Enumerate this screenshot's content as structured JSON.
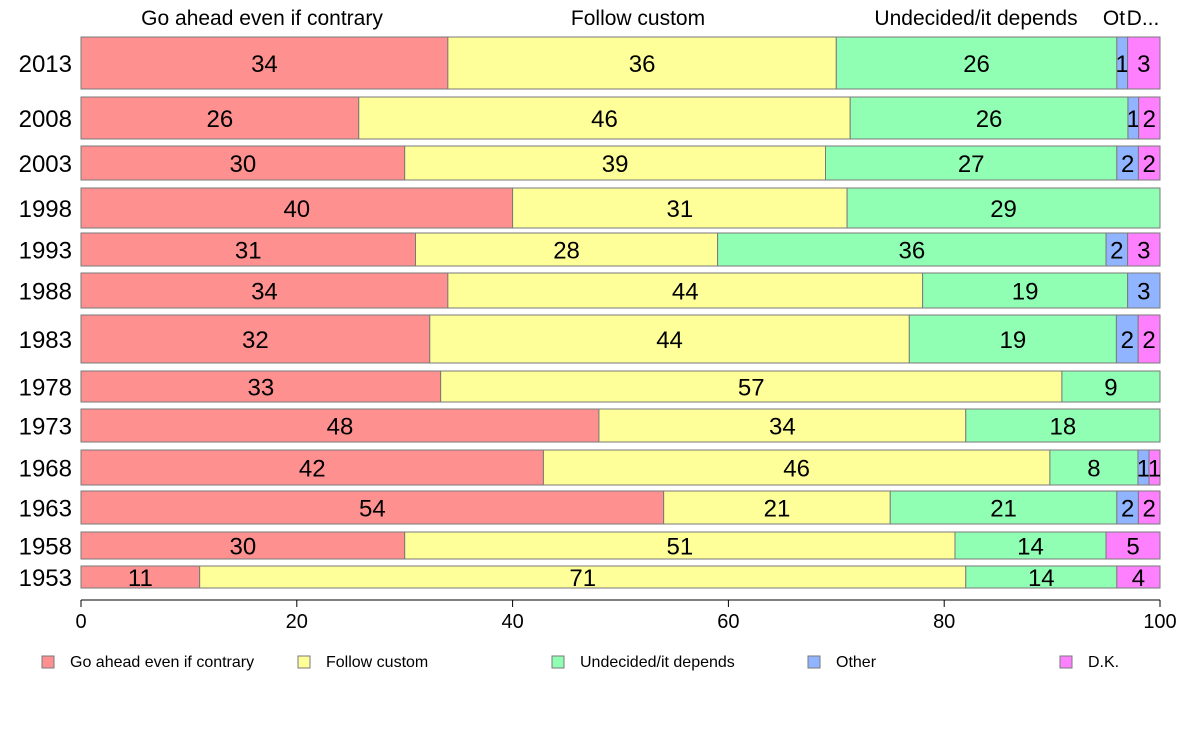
{
  "chart_data": {
    "type": "bar",
    "orientation": "horizontal",
    "stacked": true,
    "categories": [
      "2013",
      "2008",
      "2003",
      "1998",
      "1993",
      "1988",
      "1983",
      "1978",
      "1973",
      "1968",
      "1963",
      "1958",
      "1953"
    ],
    "series": [
      {
        "name": "Go ahead even if contrary",
        "color": "#ff9090",
        "values": [
          34,
          26,
          30,
          40,
          31,
          34,
          32,
          33,
          48,
          42,
          54,
          30,
          11
        ]
      },
      {
        "name": "Follow custom",
        "color": "#ffff99",
        "values": [
          36,
          46,
          39,
          31,
          28,
          44,
          44,
          57,
          34,
          46,
          21,
          51,
          71
        ]
      },
      {
        "name": "Undecided/it depends",
        "color": "#90ffb4",
        "values": [
          26,
          26,
          27,
          29,
          36,
          19,
          19,
          9,
          18,
          8,
          21,
          14,
          14
        ]
      },
      {
        "name": "Other",
        "color": "#90b4ff",
        "values": [
          1,
          1,
          2,
          0,
          2,
          3,
          2,
          0,
          0,
          1,
          2,
          0,
          0
        ]
      },
      {
        "name": "D.K.",
        "color": "#ff80ff",
        "values": [
          3,
          2,
          2,
          0,
          3,
          0,
          2,
          0,
          0,
          1,
          2,
          5,
          4
        ]
      }
    ],
    "column_headers": [
      "Go ahead even if contrary",
      "Follow custom",
      "Undecided/it depends",
      "Ot",
      "D..."
    ],
    "x_ticks": [
      "0",
      "20",
      "40",
      "60",
      "80",
      "100"
    ],
    "xlim": [
      0,
      100
    ],
    "legend_position": "bottom",
    "grid": false
  }
}
